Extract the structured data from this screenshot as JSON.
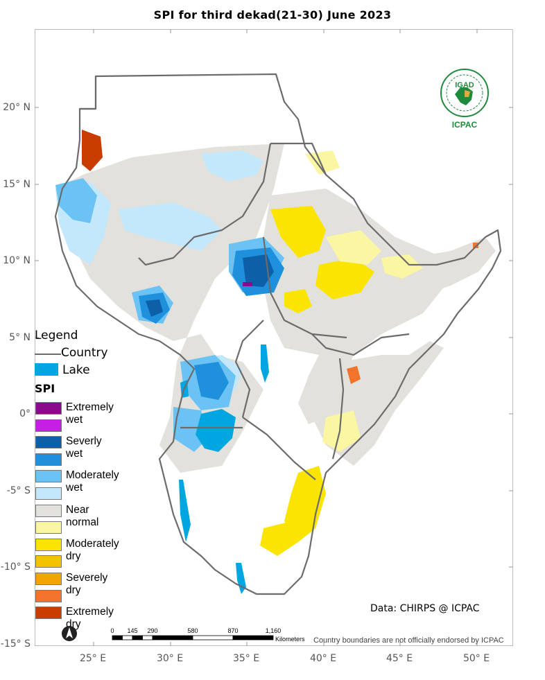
{
  "title": "SPI  for third dekad(21-30)  June  2023",
  "latitude_labels": [
    "20° N",
    "15° N",
    "10° N",
    "5° N",
    "0°",
    "-5° S",
    "-10° S",
    "-15° S"
  ],
  "longitude_labels": [
    "25° E",
    "30° E",
    "35° E",
    "40° E",
    "45° E",
    "50° E"
  ],
  "legend": {
    "title": "Legend",
    "country_label": "Country",
    "lake_label": "Lake",
    "spi_title": "SPI",
    "classes": [
      {
        "label": "Extremely wet",
        "color": "#8b0a8b"
      },
      {
        "label": "",
        "color": "#c71ee6"
      },
      {
        "label": "Severly wet",
        "color": "#0d5fa8"
      },
      {
        "label": "",
        "color": "#1f90dc"
      },
      {
        "label": "Moderately wet",
        "color": "#6bc3f5"
      },
      {
        "label": "",
        "color": "#c4e8fb"
      },
      {
        "label": "Near normal",
        "color": "#e3e1dc"
      },
      {
        "label": "",
        "color": "#fbf6a2"
      },
      {
        "label": "Moderately dry",
        "color": "#fbe400"
      },
      {
        "label": "",
        "color": "#f5c200"
      },
      {
        "label": "Severely dry",
        "color": "#f4a400"
      },
      {
        "label": "",
        "color": "#f4732a"
      },
      {
        "label": "Extremely dry",
        "color": "#c83c00"
      }
    ]
  },
  "colors": {
    "lake": "#00a6e0",
    "country_border": "#6b6b6b",
    "near_normal": "#e3e1dc",
    "logo_green": "#1f8a3c"
  },
  "source_credit": "Data: CHIRPS @ ICPAC",
  "disclaimer": "Country boundaries are not officially endorsed by ICPAC",
  "scalebar": {
    "ticks": [
      "0",
      "145",
      "290",
      "580",
      "870",
      "1,160"
    ],
    "unit": "Kilometers"
  },
  "logo": {
    "top_text": "IGAD",
    "bottom_text": "ICPAC"
  },
  "north_arrow_icon": "north-arrow-icon"
}
